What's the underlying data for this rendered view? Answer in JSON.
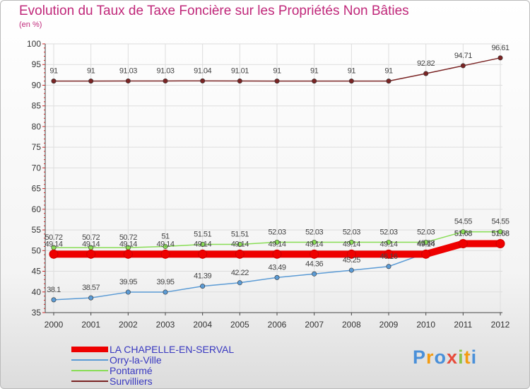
{
  "chart_data": {
    "type": "line",
    "title": "Evolution du Taux de Taxe Foncière sur les Propriétés Non Bâties",
    "subtitle": "(en %)",
    "categories": [
      "2000",
      "2001",
      "2002",
      "2003",
      "2004",
      "2005",
      "2006",
      "2007",
      "2008",
      "2009",
      "2010",
      "2011",
      "2012"
    ],
    "ylim": [
      35,
      100
    ],
    "yticks": [
      35,
      40,
      45,
      50,
      55,
      60,
      65,
      70,
      75,
      80,
      85,
      90,
      95,
      100
    ],
    "series": [
      {
        "name": "Survilliers",
        "color": "#7a2424",
        "labels": [
          "91",
          "91",
          "91.03",
          "91.03",
          "91.04",
          "91.01",
          "91",
          "91",
          "91",
          "91",
          "92.82",
          "94.71",
          "96.61"
        ],
        "values": [
          91,
          91,
          91.03,
          91.03,
          91.04,
          91.01,
          91,
          91,
          91,
          91,
          92.82,
          94.71,
          96.61
        ]
      },
      {
        "name": "Pontarmé",
        "color": "#88dd55",
        "labels": [
          "50.72",
          "50.72",
          "50.72",
          "51",
          "51.51",
          "51.51",
          "52.03",
          "52.03",
          "52.03",
          "52.03",
          "52.03",
          "54.55",
          "54.55"
        ],
        "values": [
          50.72,
          50.72,
          50.72,
          51,
          51.51,
          51.51,
          52.03,
          52.03,
          52.03,
          52.03,
          52.03,
          54.55,
          54.55
        ]
      },
      {
        "name": "Orry-la-Ville",
        "color": "#5b9bd5",
        "labels": [
          "38.1",
          "38.57",
          "39.95",
          "39.95",
          "41.39",
          "42.22",
          "43.49",
          "44.36",
          "45.25",
          "46.16",
          "49.38",
          "51.68",
          "51.68"
        ],
        "values": [
          38.1,
          38.57,
          39.95,
          39.95,
          41.39,
          42.22,
          43.49,
          44.36,
          45.25,
          46.16,
          49.38,
          51.68,
          51.68
        ]
      },
      {
        "name": "LA CHAPELLE-EN-SERVAL",
        "color": "#ee0000",
        "labels": [
          "49.14",
          "49.14",
          "49.14",
          "49.14",
          "49.14",
          "49.14",
          "49.14",
          "49.14",
          "49.14",
          "49.14",
          "49.14",
          "51.68",
          "51.68"
        ],
        "values": [
          49.14,
          49.14,
          49.14,
          49.14,
          49.14,
          49.14,
          49.14,
          49.14,
          49.14,
          49.14,
          49.14,
          51.68,
          51.68
        ]
      }
    ],
    "legend": [
      "LA CHAPELLE-EN-SERVAL",
      "Orry-la-Ville",
      "Pontarmé",
      "Survilliers"
    ]
  },
  "legend": {
    "items": [
      {
        "label": "LA CHAPELLE-EN-SERVAL",
        "color": "#ee0000"
      },
      {
        "label": "Orry-la-Ville",
        "color": "#5b9bd5"
      },
      {
        "label": "Pontarmé",
        "color": "#88dd55"
      },
      {
        "label": "Survilliers",
        "color": "#7a2424"
      }
    ]
  },
  "logo": {
    "text": "Proxiti"
  }
}
